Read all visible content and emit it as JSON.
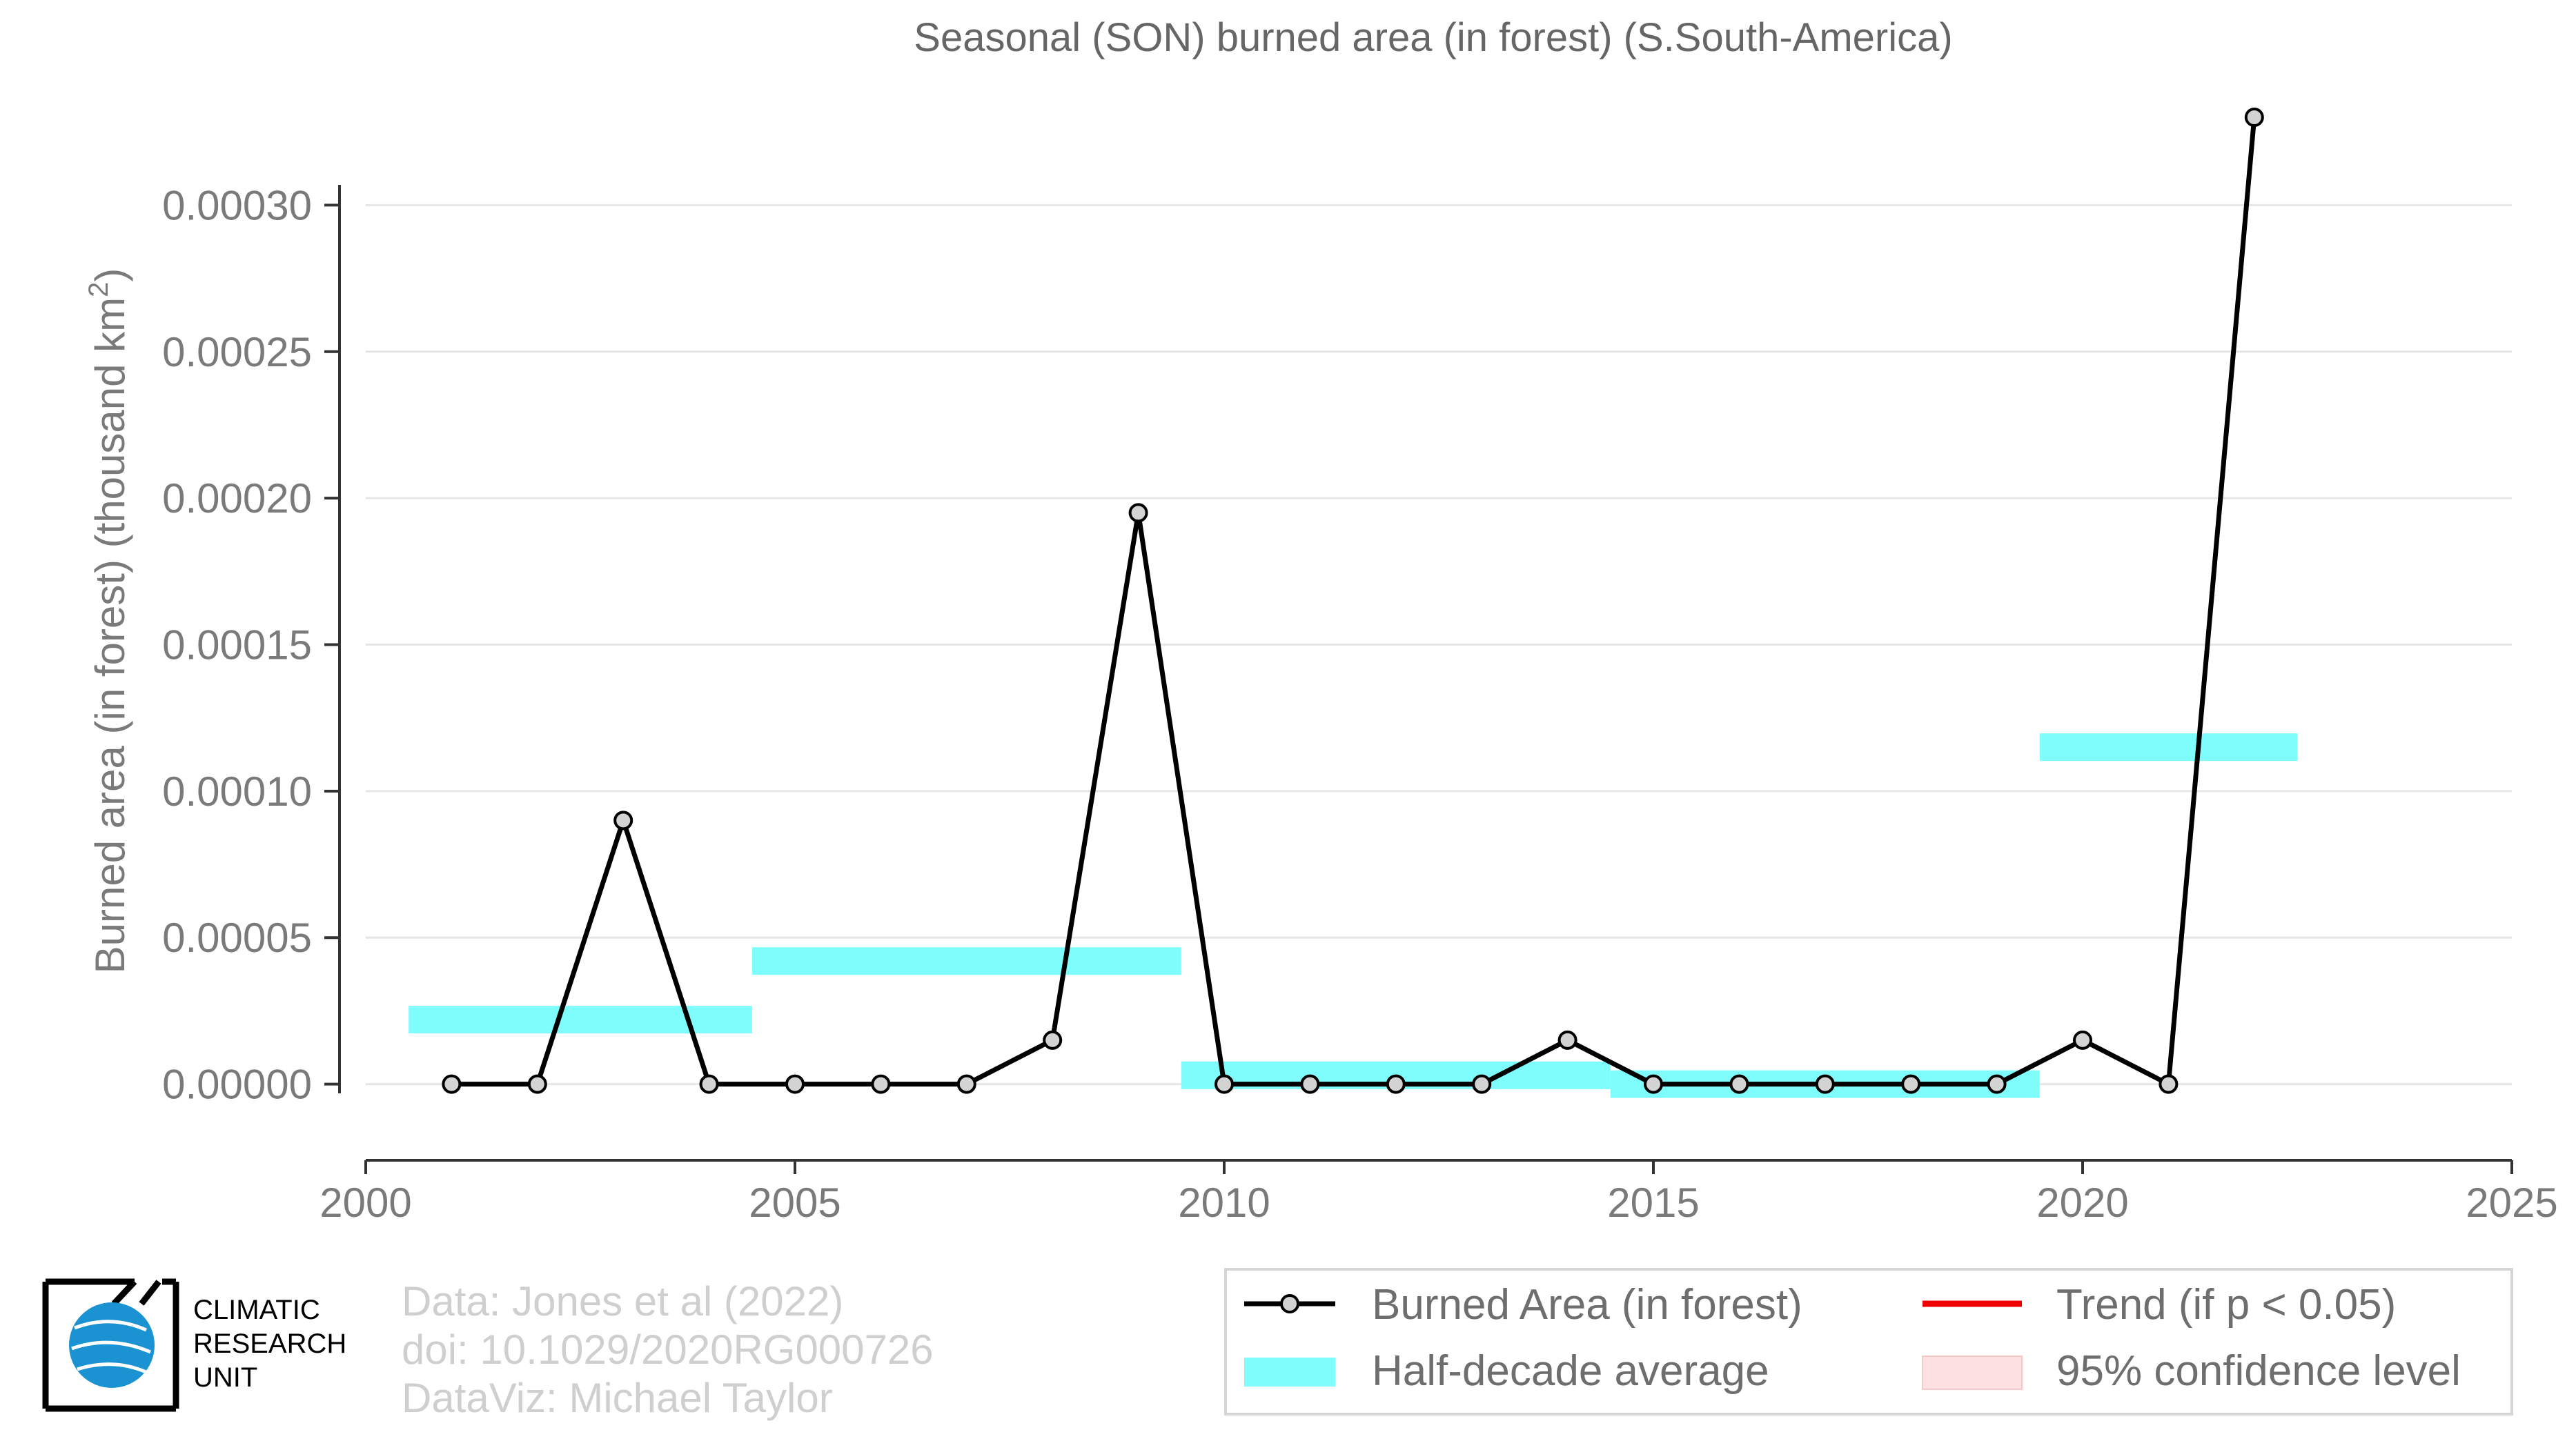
{
  "chart_data": {
    "type": "line",
    "title": "Seasonal (SON) burned area (in forest) (S.South-America)",
    "xlabel": "",
    "ylabel": "Burned area (in forest) (thousand km",
    "ylabel_sup": "2",
    "ylabel_end": ")",
    "xlim": [
      2000,
      2025
    ],
    "ylim": [
      -2.6e-05,
      0.00033
    ],
    "x_ticks": [
      2000,
      2005,
      2010,
      2015,
      2020,
      2025
    ],
    "x_tick_labels": [
      "2000",
      "2005",
      "2010",
      "2015",
      "2020",
      "2025"
    ],
    "y_ticks": [
      0,
      5e-05,
      0.0001,
      0.00015,
      0.0002,
      0.00025,
      0.0003
    ],
    "y_tick_labels": [
      "0.00000",
      "0.00005",
      "0.00010",
      "0.00015",
      "0.00020",
      "0.00025",
      "0.00030"
    ],
    "grid": true,
    "series": [
      {
        "name": "Burned Area (in forest)",
        "color": "#000000",
        "x": [
          2001,
          2002,
          2003,
          2004,
          2005,
          2006,
          2007,
          2008,
          2009,
          2010,
          2011,
          2012,
          2013,
          2014,
          2015,
          2016,
          2017,
          2018,
          2019,
          2020,
          2021,
          2022
        ],
        "y": [
          0,
          0,
          9e-05,
          0,
          0,
          0,
          0,
          1.5e-05,
          0.000195,
          0,
          0,
          0,
          0,
          1.5e-05,
          0,
          0,
          0,
          0,
          0,
          1.5e-05,
          0,
          0.00033
        ]
      }
    ],
    "half_decade_average": {
      "name": "Half-decade average",
      "color": "#7ffcfc",
      "segments": [
        {
          "x0": 2000.5,
          "x1": 2004.5,
          "y": 2.2e-05
        },
        {
          "x0": 2004.5,
          "x1": 2009.5,
          "y": 4.2e-05
        },
        {
          "x0": 2009.5,
          "x1": 2014.5,
          "y": 3e-06
        },
        {
          "x0": 2014.5,
          "x1": 2019.5,
          "y": 0
        },
        {
          "x0": 2019.5,
          "x1": 2022.5,
          "y": 0.000115
        }
      ]
    },
    "legend": {
      "placement": "bottom-right",
      "items": [
        {
          "label": "Burned Area (in forest)",
          "kind": "line-marker",
          "color": "#000000"
        },
        {
          "label": "Trend (if p < 0.05)",
          "kind": "line",
          "color": "#ee0000"
        },
        {
          "label": "Half-decade average",
          "kind": "band",
          "color": "#7ffcfc"
        },
        {
          "label": "95% confidence level",
          "kind": "band",
          "color": "#fde0e0"
        }
      ]
    }
  },
  "credits": {
    "line1": "Data: Jones et al (2022)",
    "line2": "doi: 10.1029/2020RG000726",
    "line3": "DataViz: Michael Taylor"
  },
  "logo": {
    "line1": "CLIMATIC",
    "line2": "RESEARCH",
    "line3": "UNIT"
  }
}
